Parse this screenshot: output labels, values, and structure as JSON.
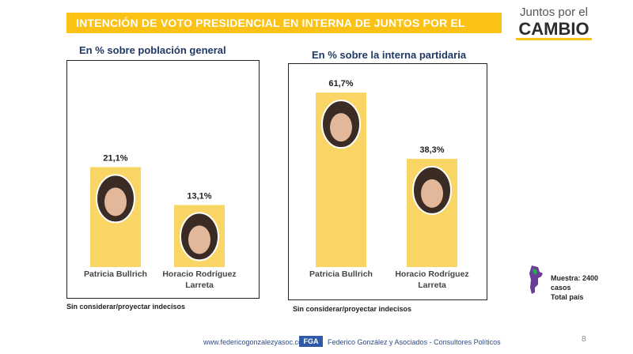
{
  "header": {
    "title": "INTENCIÓN DE VOTO PRESIDENCIAL EN INTERNA DE JUNTOS POR EL CAMBIO",
    "logo_top": "Juntos por el",
    "logo_bottom": "CAMBIO"
  },
  "colors": {
    "bar": "#f9d566",
    "title_bar": "#f9c214",
    "text": "#1f3864"
  },
  "chart_data": [
    {
      "type": "bar",
      "title": "En % sobre población general",
      "categories": [
        "Patricia Bullrich",
        "Horacio Rodríguez Larreta"
      ],
      "values": [
        21.1,
        13.1
      ],
      "data_labels": [
        "21,1%",
        "13,1%"
      ],
      "ylim": [
        0,
        70
      ],
      "note": "Sin considerar/proyectar indecisos"
    },
    {
      "type": "bar",
      "title": "En % sobre la interna partidaria",
      "categories": [
        "Patricia Bullrich",
        "Horacio Rodríguez Larreta"
      ],
      "values": [
        61.7,
        38.3
      ],
      "data_labels": [
        "61,7%",
        "38,3%"
      ],
      "ylim": [
        0,
        70
      ],
      "note": "Sin considerar/proyectar indecisos"
    }
  ],
  "sample": {
    "line1": "Muestra: 2400 casos",
    "line2": "Total país"
  },
  "footer": {
    "website": "www.federicogonzalezyasoc.com",
    "badge": "FGA",
    "company": "Federico González y Asociados - Consultores Políticos",
    "page_number": "8"
  }
}
